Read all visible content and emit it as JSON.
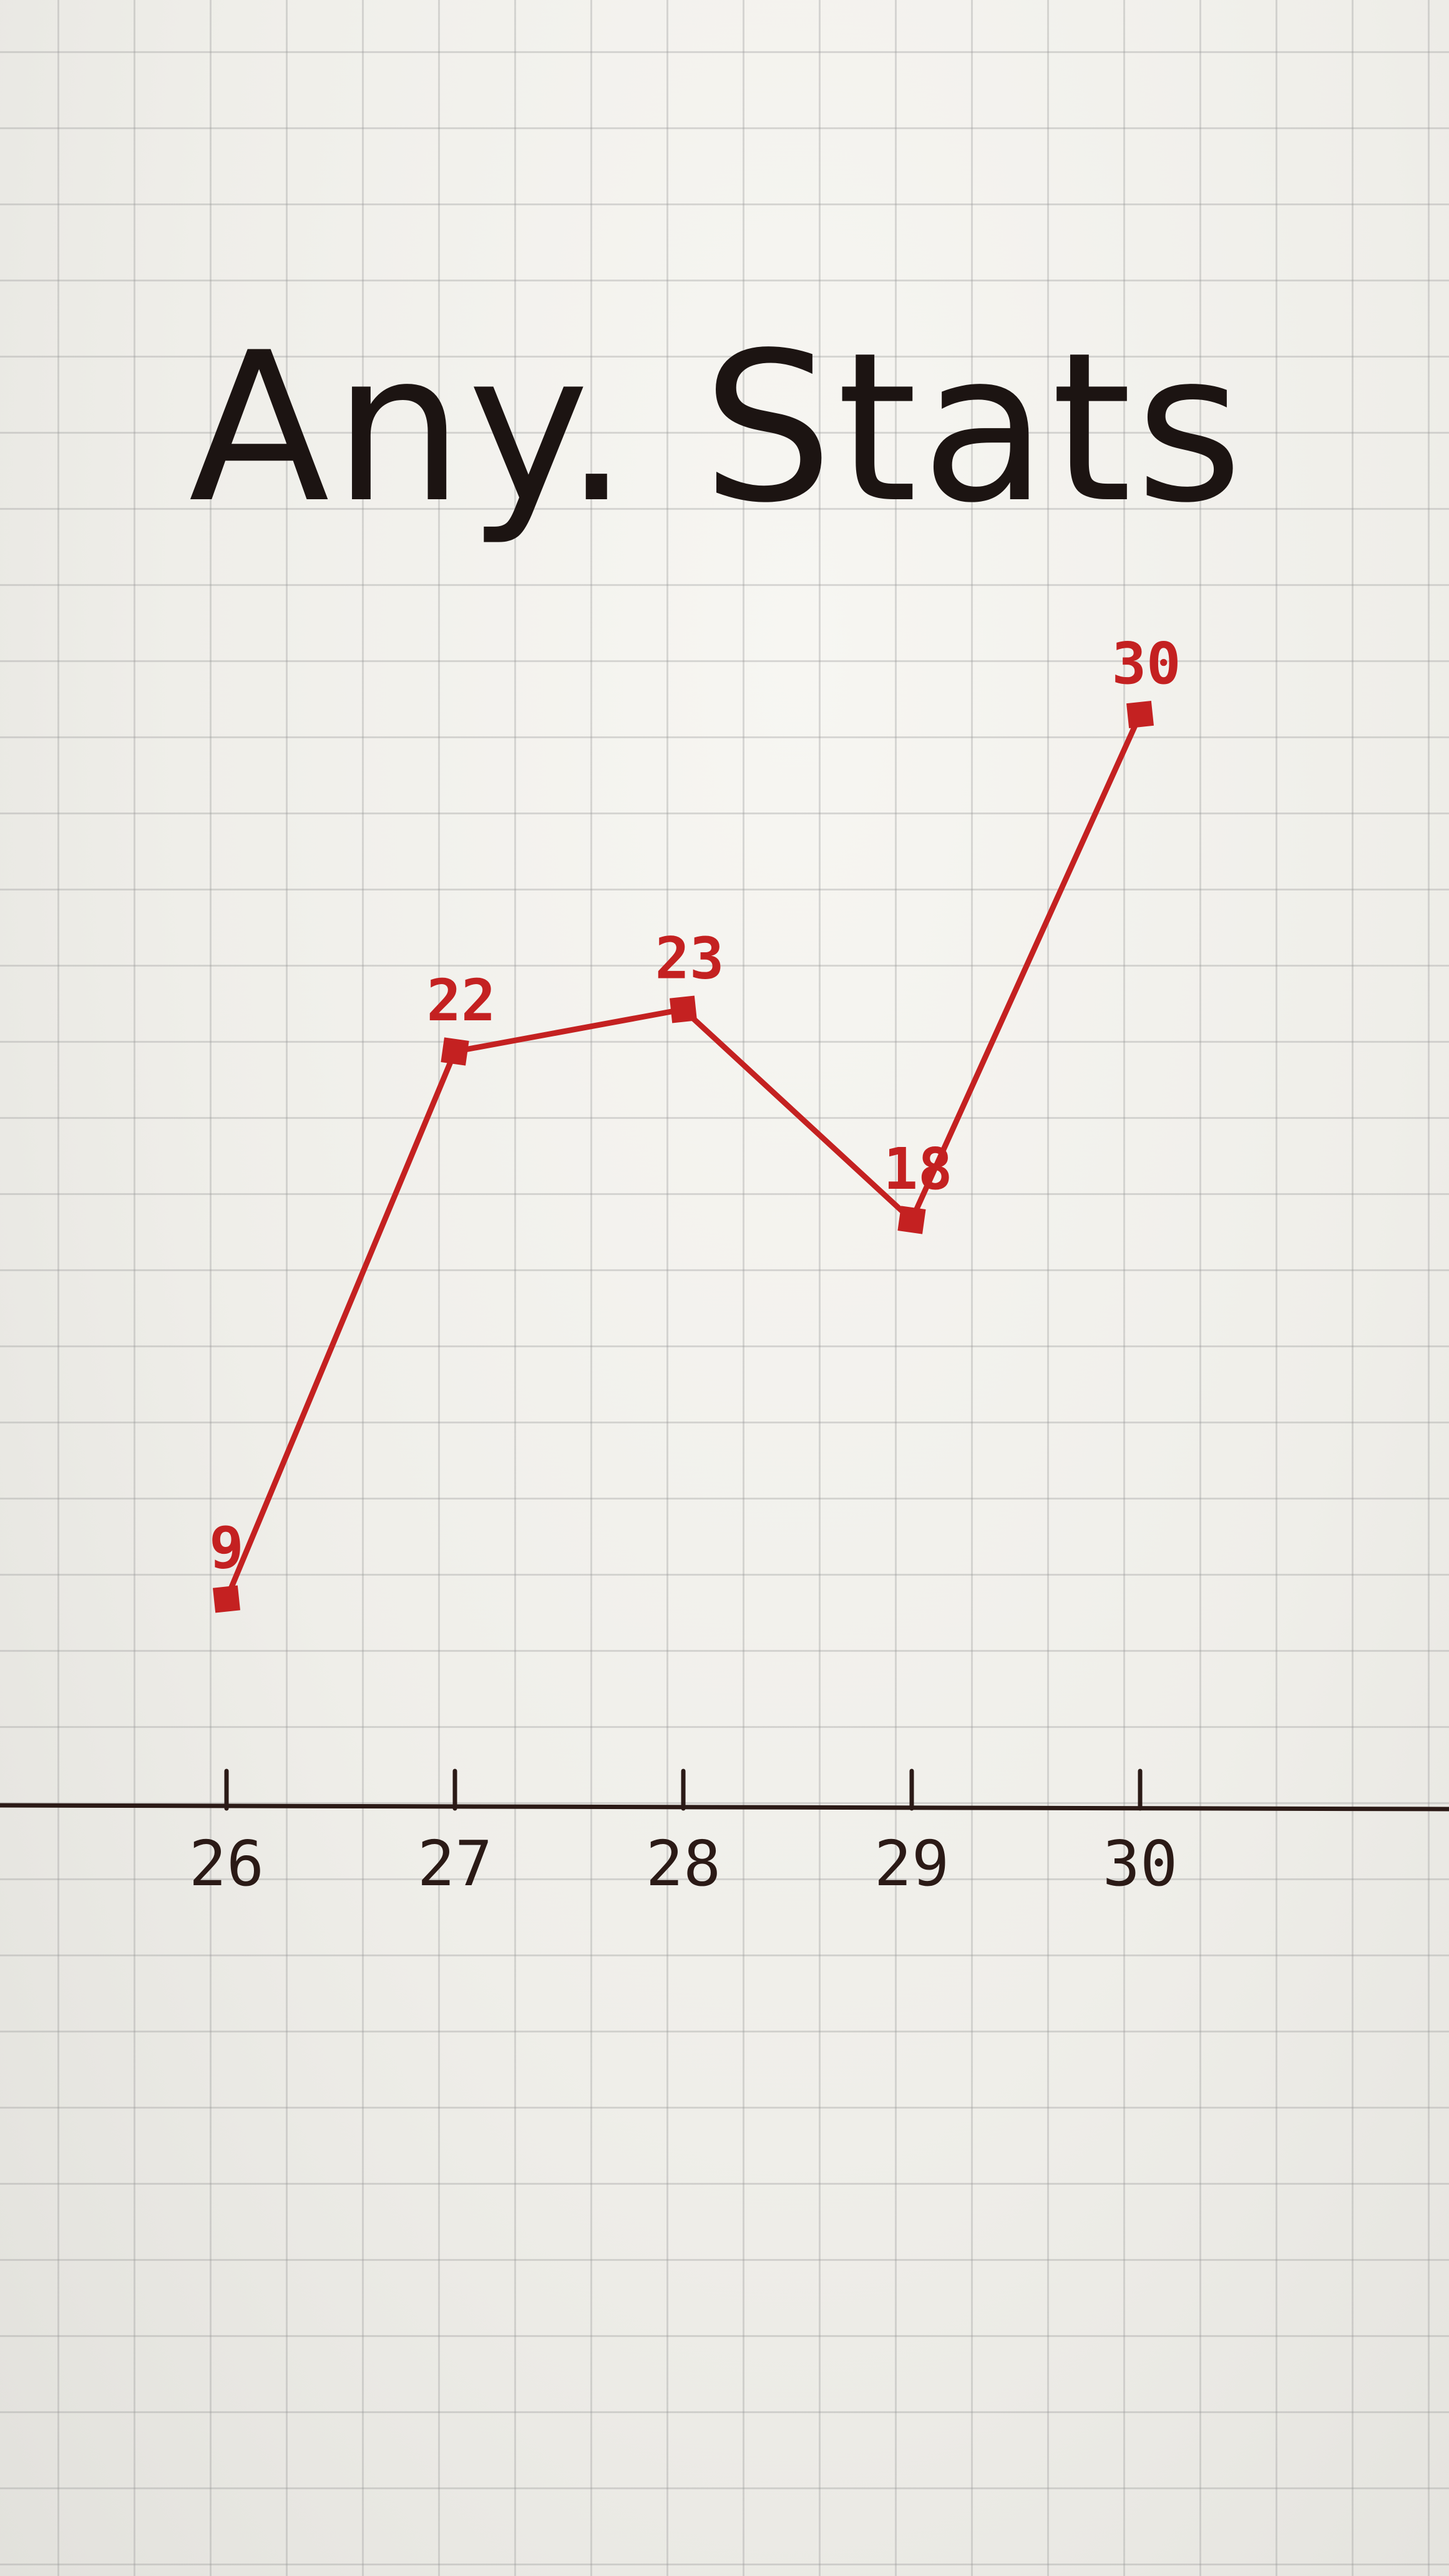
{
  "chart_data": {
    "type": "line",
    "title": "Any. Stats",
    "xlabel": "",
    "ylabel": "",
    "x": [
      26,
      27,
      28,
      29,
      30
    ],
    "series": [
      {
        "values": [
          9,
          22,
          23,
          18,
          30
        ]
      }
    ],
    "tick_labels": [
      "26",
      "27",
      "28",
      "29",
      "30"
    ],
    "data_labels": [
      "9",
      "22",
      "23",
      "18",
      "30"
    ],
    "ylim": [
      0,
      32
    ],
    "grid": true,
    "legend": "none",
    "colors": {
      "line": "#c42121",
      "axis": "#2b1a16",
      "title": "#1c1412",
      "paper": "#f1f0ec"
    }
  }
}
